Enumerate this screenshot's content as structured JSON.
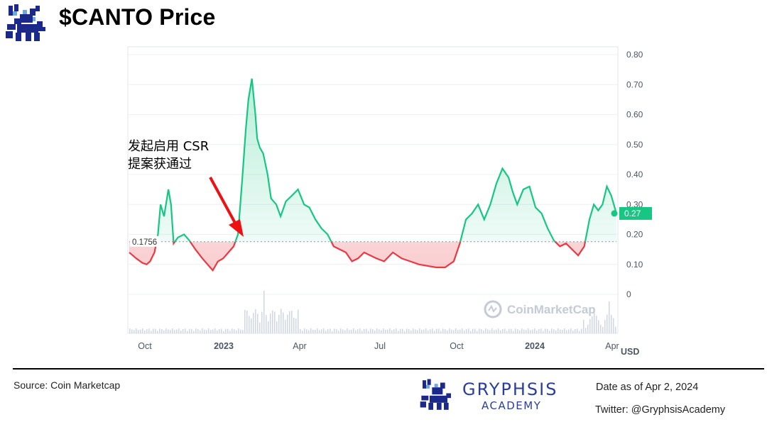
{
  "header": {
    "title": "$CANTO Price"
  },
  "annotation": {
    "line1": "发起启用 CSR",
    "line2": "提案获通过"
  },
  "footer": {
    "source": "Source: Coin Marketcap",
    "brand_name": "GRYPHSIS",
    "brand_sub": "ACADEMY",
    "date_as_of": "Date as of Apr 2, 2024",
    "twitter": "Twitter: @GryphsisAcademy"
  },
  "colors": {
    "up": "#16c784",
    "down": "#ea3943",
    "brand": "#2a3f9c",
    "logo": "#1b2a8a"
  },
  "chart_data": {
    "type": "line",
    "watermark": "CoinMarketCap",
    "x_ticks": [
      "Oct",
      "2023",
      "Apr",
      "Jul",
      "Oct",
      "2024",
      "Apr"
    ],
    "y_ticks": [
      "0.80",
      "0.70",
      "0.60",
      "0.50",
      "0.40",
      "0.30",
      "0.20",
      "0.10",
      "0"
    ],
    "yunit": "USD",
    "ylim": [
      0,
      0.8
    ],
    "reference": {
      "value": 0.1756,
      "label": "0.1756"
    },
    "current": {
      "value": 0.27,
      "label": "0.27"
    },
    "series": [
      {
        "x": [
          "2022-09-20",
          "2022-09-28",
          "2022-10-05",
          "2022-10-10",
          "2022-10-14",
          "2022-10-19",
          "2022-10-23",
          "2022-10-26",
          "2022-10-30",
          "2022-11-04",
          "2022-11-07",
          "2022-11-10",
          "2022-11-15",
          "2022-11-22",
          "2022-11-28",
          "2022-12-05",
          "2022-12-13",
          "2022-12-19",
          "2022-12-25",
          "2022-12-31",
          "2023-01-06",
          "2023-01-12",
          "2023-01-18",
          "2023-01-23",
          "2023-01-28",
          "2023-02-01",
          "2023-02-04",
          "2023-02-08",
          "2023-02-12",
          "2023-02-14",
          "2023-02-17",
          "2023-02-21",
          "2023-02-26",
          "2023-03-02",
          "2023-03-08",
          "2023-03-13",
          "2023-03-19",
          "2023-03-26",
          "2023-04-02",
          "2023-04-09",
          "2023-04-15",
          "2023-04-22",
          "2023-04-29",
          "2023-05-06",
          "2023-05-13",
          "2023-05-20",
          "2023-05-27",
          "2023-06-03",
          "2023-06-10",
          "2023-06-17",
          "2023-06-24",
          "2023-07-01",
          "2023-07-10",
          "2023-07-20",
          "2023-07-30",
          "2023-08-09",
          "2023-08-19",
          "2023-08-29",
          "2023-09-08",
          "2023-09-18",
          "2023-09-28",
          "2023-10-05",
          "2023-10-12",
          "2023-10-19",
          "2023-10-26",
          "2023-11-02",
          "2023-11-09",
          "2023-11-16",
          "2023-11-23",
          "2023-11-30",
          "2023-12-05",
          "2023-12-10",
          "2023-12-17",
          "2023-12-24",
          "2023-12-31",
          "2024-01-07",
          "2024-01-14",
          "2024-01-21",
          "2024-01-28",
          "2024-02-04",
          "2024-02-11",
          "2024-02-18",
          "2024-02-25",
          "2024-03-02",
          "2024-03-07",
          "2024-03-12",
          "2024-03-17",
          "2024-03-22",
          "2024-03-27",
          "2024-04-02"
        ],
        "values": [
          0.14,
          0.12,
          0.105,
          0.1,
          0.11,
          0.14,
          0.2,
          0.3,
          0.26,
          0.35,
          0.3,
          0.17,
          0.19,
          0.2,
          0.18,
          0.15,
          0.12,
          0.1,
          0.08,
          0.11,
          0.12,
          0.14,
          0.16,
          0.2,
          0.39,
          0.55,
          0.65,
          0.72,
          0.6,
          0.52,
          0.49,
          0.47,
          0.4,
          0.32,
          0.3,
          0.26,
          0.31,
          0.33,
          0.35,
          0.3,
          0.29,
          0.25,
          0.22,
          0.2,
          0.16,
          0.15,
          0.14,
          0.11,
          0.12,
          0.14,
          0.13,
          0.12,
          0.11,
          0.14,
          0.12,
          0.11,
          0.1,
          0.095,
          0.09,
          0.09,
          0.11,
          0.17,
          0.25,
          0.27,
          0.3,
          0.25,
          0.3,
          0.37,
          0.42,
          0.39,
          0.34,
          0.3,
          0.35,
          0.36,
          0.29,
          0.27,
          0.22,
          0.18,
          0.16,
          0.17,
          0.15,
          0.13,
          0.16,
          0.25,
          0.3,
          0.28,
          0.3,
          0.36,
          0.33,
          0.27
        ]
      }
    ],
    "volume_label": "volume"
  }
}
